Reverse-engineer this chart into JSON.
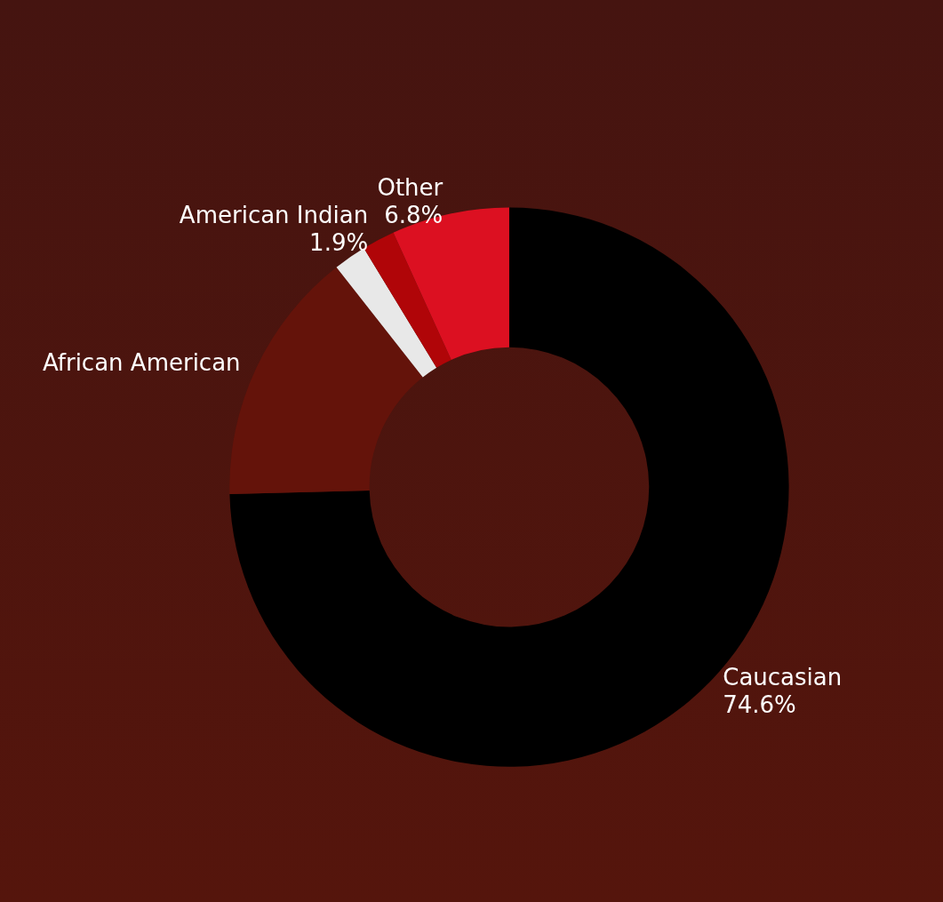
{
  "chart_data": {
    "type": "donut",
    "categories": [
      "Caucasian",
      "African American",
      null,
      "American Indian",
      "Other"
    ],
    "values": [
      74.6,
      14.8,
      1.9,
      1.9,
      6.8
    ],
    "colors": [
      "#000000",
      "#64130a",
      "#e8e8e8",
      "#b00508",
      "#dc1021"
    ],
    "value_labels": [
      "74.6%",
      null,
      null,
      "1.9%",
      "6.8%"
    ]
  }
}
